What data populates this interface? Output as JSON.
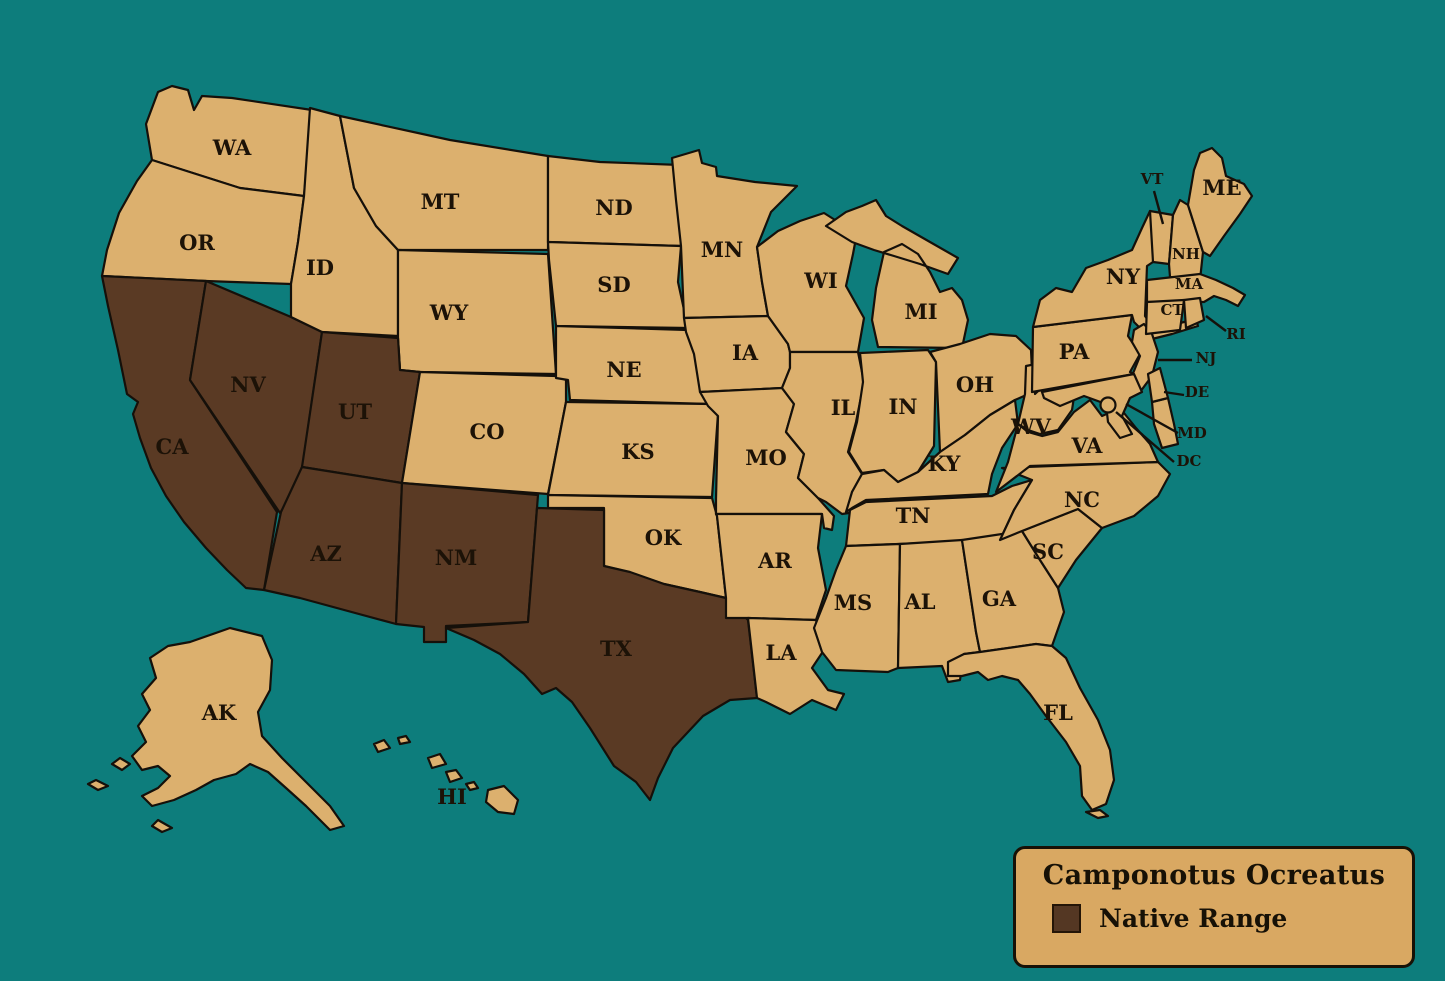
{
  "background_color": "#0d7d7c",
  "legend": {
    "title": "Camponotus Ocreatus",
    "item_label": "Native Range",
    "swatch_color": "#543723",
    "bg_color": "#d9a862",
    "text_color": "#171106"
  },
  "map": {
    "region": "United States",
    "state_fill": "#dcb06e",
    "range_fill": "#5a3a24",
    "border_color": "#15100a",
    "label_color": "#1c1207",
    "highlighted": [
      "CA",
      "NV",
      "UT",
      "AZ",
      "NM",
      "TX"
    ],
    "small_label_codes": [
      "VT",
      "NH",
      "MA",
      "CT",
      "RI",
      "NJ",
      "DE",
      "MD",
      "DC"
    ],
    "states": [
      {
        "code": "WA"
      },
      {
        "code": "OR"
      },
      {
        "code": "CA"
      },
      {
        "code": "NV"
      },
      {
        "code": "ID"
      },
      {
        "code": "MT"
      },
      {
        "code": "WY"
      },
      {
        "code": "UT"
      },
      {
        "code": "CO"
      },
      {
        "code": "AZ"
      },
      {
        "code": "NM"
      },
      {
        "code": "ND"
      },
      {
        "code": "SD"
      },
      {
        "code": "NE"
      },
      {
        "code": "KS"
      },
      {
        "code": "OK"
      },
      {
        "code": "TX"
      },
      {
        "code": "MN"
      },
      {
        "code": "IA"
      },
      {
        "code": "MO"
      },
      {
        "code": "AR"
      },
      {
        "code": "LA"
      },
      {
        "code": "WI"
      },
      {
        "code": "IL"
      },
      {
        "code": "IN"
      },
      {
        "code": "MI"
      },
      {
        "code": "OH"
      },
      {
        "code": "KY"
      },
      {
        "code": "TN"
      },
      {
        "code": "MS"
      },
      {
        "code": "AL"
      },
      {
        "code": "GA"
      },
      {
        "code": "FL"
      },
      {
        "code": "SC"
      },
      {
        "code": "NC"
      },
      {
        "code": "VA"
      },
      {
        "code": "WV"
      },
      {
        "code": "PA"
      },
      {
        "code": "NY"
      },
      {
        "code": "NJ"
      },
      {
        "code": "VT"
      },
      {
        "code": "NH"
      },
      {
        "code": "MA"
      },
      {
        "code": "CT"
      },
      {
        "code": "RI"
      },
      {
        "code": "ME"
      },
      {
        "code": "DE"
      },
      {
        "code": "MD"
      },
      {
        "code": "DC",
        "label_only": true
      },
      {
        "code": "AK"
      },
      {
        "code": "HI"
      }
    ]
  }
}
